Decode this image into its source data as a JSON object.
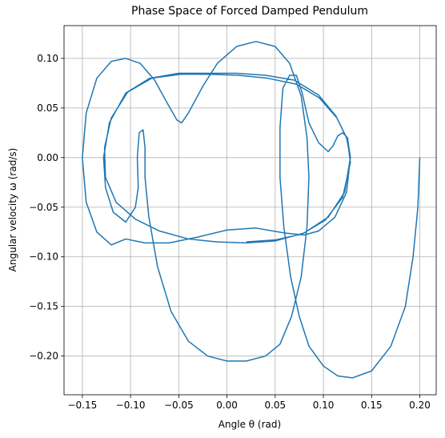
{
  "chart_data": {
    "type": "line",
    "title": "Phase Space of Forced Damped Pendulum",
    "xlabel": "Angle θ (rad)",
    "ylabel": "Angular velocity ω (rad/s)",
    "color": "#1f77b4",
    "grid": true,
    "xlim": [
      -0.169,
      0.217
    ],
    "ylim": [
      -0.239,
      0.133
    ],
    "xticks": [
      {
        "value": -0.15,
        "label": "−0.15"
      },
      {
        "value": -0.1,
        "label": "−0.10"
      },
      {
        "value": -0.05,
        "label": "−0.05"
      },
      {
        "value": 0,
        "label": "0.00"
      },
      {
        "value": 0.05,
        "label": "0.05"
      },
      {
        "value": 0.1,
        "label": "0.10"
      },
      {
        "value": 0.15,
        "label": "0.15"
      },
      {
        "value": 0.2,
        "label": "0.20"
      }
    ],
    "yticks": [
      {
        "value": -0.2,
        "label": "−0.20"
      },
      {
        "value": -0.15,
        "label": "−0.15"
      },
      {
        "value": -0.1,
        "label": "−0.10"
      },
      {
        "value": -0.05,
        "label": "−0.05"
      },
      {
        "value": 0,
        "label": "0.00"
      },
      {
        "value": 0.05,
        "label": "0.05"
      },
      {
        "value": 0.1,
        "label": "0.10"
      }
    ],
    "x": [
      0.2,
      0.198,
      0.193,
      0.185,
      0.17,
      0.15,
      0.13,
      0.115,
      0.1,
      0.085,
      0.075,
      0.066,
      0.059,
      0.055,
      0.055,
      0.058,
      0.065,
      0.072,
      0.078,
      0.085,
      0.095,
      0.105,
      0.11,
      0.115,
      0.12,
      0.125,
      0.128,
      0.124,
      0.112,
      0.095,
      0.08,
      0.06,
      0.03,
      0.0,
      -0.03,
      -0.06,
      -0.085,
      -0.105,
      -0.12,
      -0.135,
      -0.146,
      -0.15,
      -0.146,
      -0.135,
      -0.12,
      -0.105,
      -0.09,
      -0.075,
      -0.062,
      -0.052,
      -0.047,
      -0.04,
      -0.025,
      -0.01,
      0.01,
      0.03,
      0.05,
      0.065,
      0.077,
      0.083,
      0.085,
      0.083,
      0.077,
      0.067,
      0.055,
      0.04,
      0.02,
      0.0,
      -0.02,
      -0.04,
      -0.058,
      -0.072,
      -0.081,
      -0.085,
      -0.085,
      -0.087,
      -0.091,
      -0.093,
      -0.092,
      -0.095,
      -0.105,
      -0.118,
      -0.126,
      -0.128,
      -0.122,
      -0.105,
      -0.08,
      -0.05,
      -0.02,
      0.01,
      0.04,
      0.07,
      0.095,
      0.113,
      0.124,
      0.128,
      0.122,
      0.105,
      0.08,
      0.05,
      0.02,
      -0.01,
      -0.04,
      -0.07,
      -0.095,
      -0.115,
      -0.126,
      -0.127,
      -0.12,
      -0.103,
      -0.078,
      -0.048,
      -0.018,
      0.012,
      0.042,
      0.072,
      0.096,
      0.114,
      0.125,
      0.128,
      0.12,
      0.102,
      0.078,
      0.05,
      0.02
    ],
    "values": [
      0.0,
      -0.05,
      -0.1,
      -0.15,
      -0.19,
      -0.215,
      -0.222,
      -0.22,
      -0.21,
      -0.19,
      -0.16,
      -0.12,
      -0.07,
      -0.02,
      0.03,
      0.07,
      0.083,
      0.083,
      0.065,
      0.035,
      0.015,
      0.006,
      0.012,
      0.022,
      0.025,
      0.02,
      0.0,
      -0.035,
      -0.06,
      -0.074,
      -0.078,
      -0.076,
      -0.071,
      -0.073,
      -0.08,
      -0.086,
      -0.086,
      -0.082,
      -0.088,
      -0.075,
      -0.045,
      0.0,
      0.045,
      0.08,
      0.097,
      0.1,
      0.095,
      0.078,
      0.055,
      0.038,
      0.035,
      0.045,
      0.072,
      0.095,
      0.112,
      0.117,
      0.112,
      0.095,
      0.062,
      0.02,
      -0.02,
      -0.07,
      -0.12,
      -0.16,
      -0.188,
      -0.2,
      -0.205,
      -0.205,
      -0.2,
      -0.185,
      -0.155,
      -0.11,
      -0.06,
      -0.02,
      0.01,
      0.028,
      0.025,
      0.0,
      -0.03,
      -0.05,
      -0.065,
      -0.055,
      -0.03,
      0.0,
      0.035,
      0.065,
      0.08,
      0.085,
      0.085,
      0.085,
      0.083,
      0.078,
      0.063,
      0.042,
      0.02,
      0.0,
      -0.035,
      -0.06,
      -0.076,
      -0.084,
      -0.086,
      -0.085,
      -0.082,
      -0.074,
      -0.062,
      -0.045,
      -0.02,
      0.01,
      0.04,
      0.066,
      0.08,
      0.084,
      0.084,
      0.083,
      0.08,
      0.074,
      0.06,
      0.04,
      0.018,
      -0.005,
      -0.04,
      -0.063,
      -0.077,
      -0.083,
      -0.085
    ]
  }
}
